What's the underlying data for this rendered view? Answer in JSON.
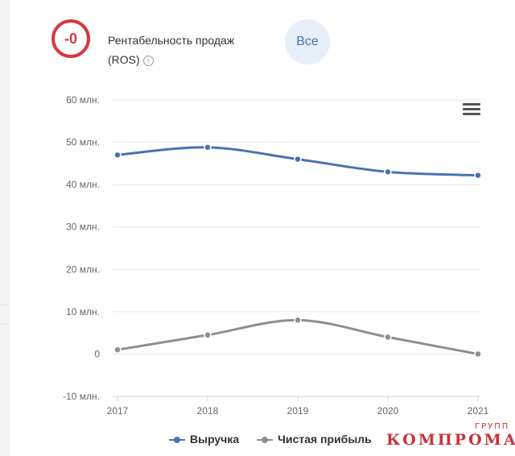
{
  "header": {
    "ros_value": "-0",
    "ros_title_line1": "Рентабельность продаж",
    "ros_title_line2": "(ROS)",
    "info_icon": "info-icon",
    "all_button_label": "Все"
  },
  "chart_data": {
    "type": "line",
    "title": "",
    "xlabel": "",
    "ylabel": "",
    "x": [
      "2017",
      "2018",
      "2019",
      "2020",
      "2021"
    ],
    "ylim": [
      -10,
      60
    ],
    "y_ticks": [
      {
        "value": 60,
        "label": "60 млн."
      },
      {
        "value": 50,
        "label": "50 млн."
      },
      {
        "value": 40,
        "label": "40 млн."
      },
      {
        "value": 30,
        "label": "30 млн."
      },
      {
        "value": 20,
        "label": "20 млн."
      },
      {
        "value": 10,
        "label": "10 млн."
      },
      {
        "value": 0,
        "label": "0"
      },
      {
        "value": -10,
        "label": "-10 млн."
      }
    ],
    "grid": true,
    "smooth": true,
    "legend_position": "bottom",
    "series": [
      {
        "name": "Выручка",
        "color": "#4a72b0",
        "values": [
          47,
          48.8,
          46,
          43,
          42.2
        ]
      },
      {
        "name": "Чистая прибыль",
        "color": "#8e8e8e",
        "values": [
          1,
          4.5,
          8,
          4,
          0
        ]
      }
    ]
  },
  "watermark": {
    "main": "КОМПРОМАТ",
    "sup": "ГРУПП"
  }
}
